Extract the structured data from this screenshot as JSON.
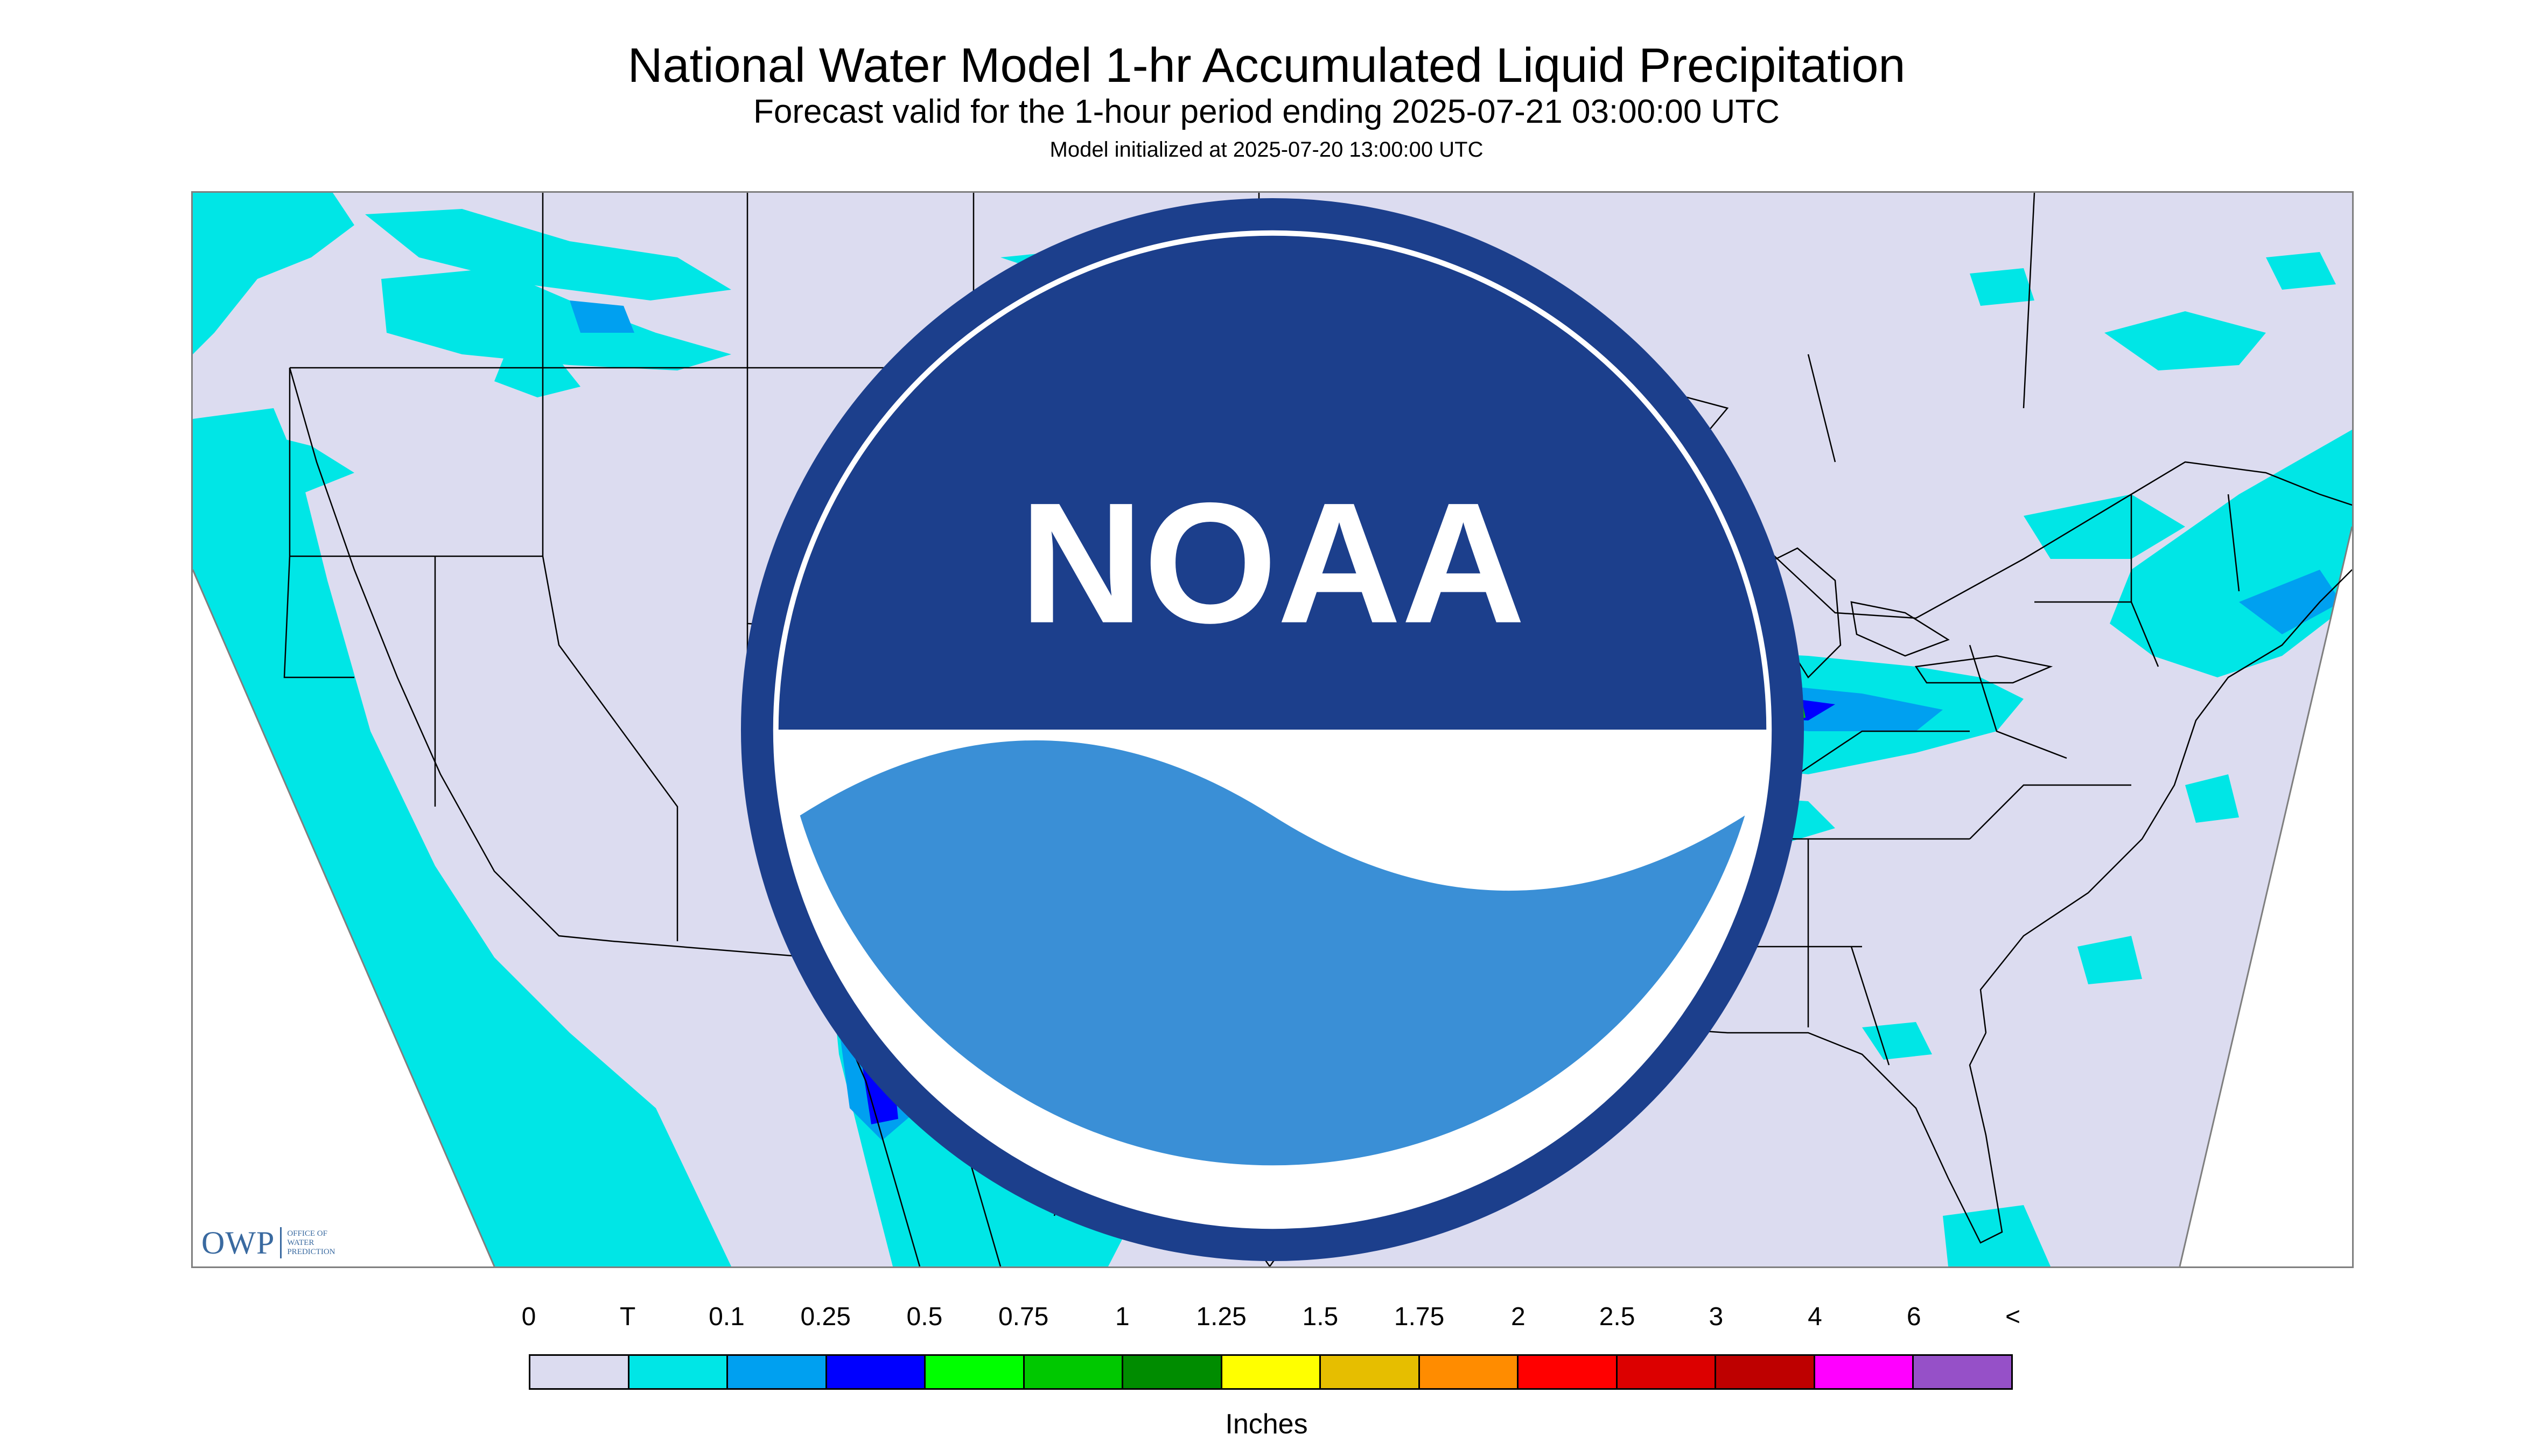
{
  "title": "National Water Model 1-hr Accumulated Liquid Precipitation",
  "subtitle": "Forecast valid for the 1-hour period ending 2025-07-21 03:00:00 UTC",
  "initialized": "Model initialized at 2025-07-20 13:00:00 UTC",
  "units_label": "Inches",
  "logos": {
    "owp_text": "OWP",
    "owp_subtext": "OFFICE OF\nWATER\nPREDICTION",
    "noaa_text": "NOAA"
  },
  "legend": {
    "labels": [
      "0",
      "T",
      "0.1",
      "0.25",
      "0.5",
      "0.75",
      "1",
      "1.25",
      "1.5",
      "1.75",
      "2",
      "2.5",
      "3",
      "4",
      "6",
      "<"
    ],
    "colors": [
      "#dcdcf0",
      "#00e6e6",
      "#00a0f0",
      "#0000ff",
      "#00ff00",
      "#00c800",
      "#008c00",
      "#ffff00",
      "#e6be00",
      "#ff8c00",
      "#ff0000",
      "#dc0000",
      "#be0000",
      "#ff00ff",
      "#9650c8"
    ]
  },
  "map_colors": {
    "background": "#dcdcf0",
    "trace": "#00e6e6",
    "light": "#00a0f0",
    "medium": "#0000ff",
    "heavy": "#00c800",
    "borders": "#000000"
  }
}
